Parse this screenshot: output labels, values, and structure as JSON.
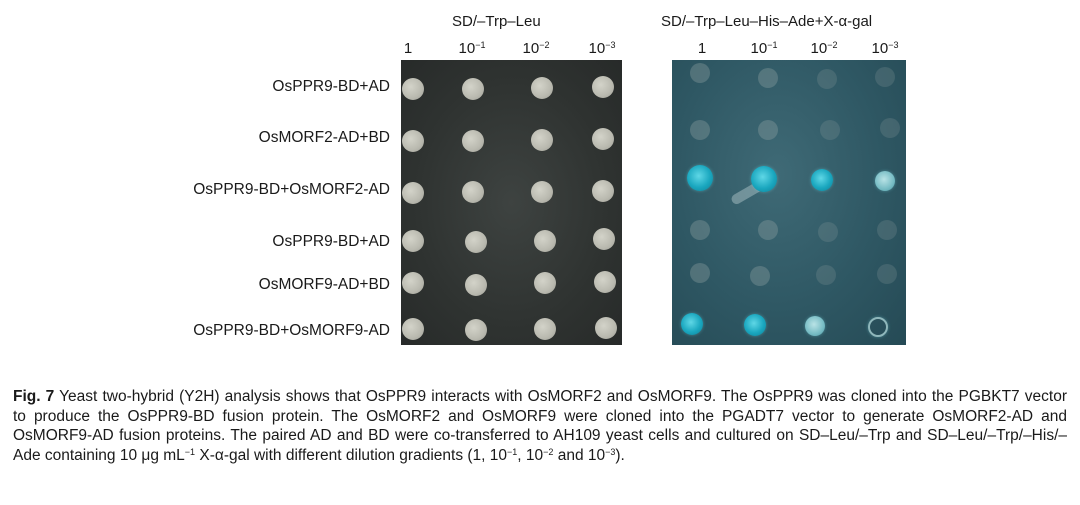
{
  "figure": {
    "left_panel_title": "SD/–Trp–Leu",
    "right_panel_title": "SD/–Trp–Leu–His–Ade+X-α-gal",
    "dilutions_left": [
      {
        "base": "1",
        "exp": ""
      },
      {
        "base": "10",
        "exp": "−1"
      },
      {
        "base": "10",
        "exp": "−2"
      },
      {
        "base": "10",
        "exp": "−3"
      }
    ],
    "dilutions_right": [
      {
        "base": "1",
        "exp": ""
      },
      {
        "base": "10",
        "exp": "−1"
      },
      {
        "base": "10",
        "exp": "−2"
      },
      {
        "base": "10",
        "exp": "−3"
      }
    ],
    "row_labels": [
      "OsPPR9-BD+AD",
      "OsMORF2-AD+BD",
      "OsPPR9-BD+OsMORF2-AD",
      "OsPPR9-BD+AD",
      "OsMORF9-AD+BD",
      "OsPPR9-BD+OsMORF9-AD"
    ],
    "colors": {
      "left_plate": "#2f3331",
      "right_plate": "#2f5864",
      "blue_colony": "#1aa7bf",
      "white_colony": "#c4c4ba"
    }
  },
  "caption": {
    "label": "Fig. 7",
    "part1": " Yeast two-hybrid (Y2H) analysis shows that OsPPR9 interacts with OsMORF2 and OsMORF9.  The OsPPR9 was cloned into the PGBKT7 vector to produce the OsPPR9-BD fusion protein.  The OsMORF2 and OsMORF9 were cloned into the PGADT7 vector to generate OsMORF2-AD and OsMORF9-AD fusion proteins.  The paired AD and BD were co-transferred to AH109 yeast cells and cultured on SD–Leu/–Trp and SD–Leu/–Trp/–His/–Ade containing 10 μg mL",
    "sup1": "−1",
    "part2": " X-α-gal with different dilution gradients (1, 10",
    "sup2": "−1",
    "part3": ", 10",
    "sup3": "−2",
    "part4": " and 10",
    "sup4": "−3",
    "part5": ")."
  }
}
